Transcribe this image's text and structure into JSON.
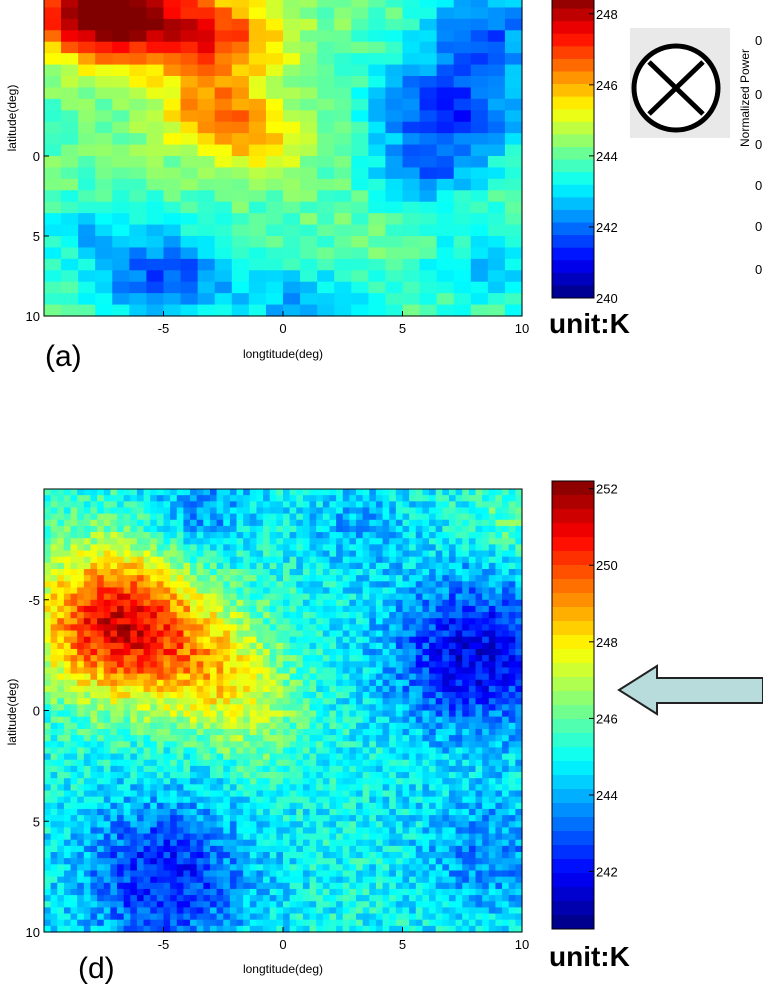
{
  "chart_data": [
    {
      "type": "heatmap",
      "panel_label": "(a)",
      "xlabel": "longtitude(deg)",
      "ylabel": "latitude(deg)",
      "x_ticks": [
        -5,
        0,
        5,
        10
      ],
      "y_ticks": [
        0,
        5,
        10
      ],
      "xlim": [
        -10,
        10
      ],
      "ylim": [
        -10,
        10
      ],
      "colorbar": {
        "ticks": [
          240,
          242,
          244,
          246,
          248
        ],
        "range": [
          240,
          248.5
        ],
        "unit_label": "unit:K"
      },
      "fields": {
        "base": 244.0,
        "blobs": [
          {
            "lon": -7.5,
            "lat": -9.0,
            "amp": 5.5,
            "sigma": 2.0
          },
          {
            "lon": -3.0,
            "lat": -7.5,
            "amp": 3.0,
            "sigma": 2.2
          },
          {
            "lon": -3.0,
            "lat": -2.5,
            "amp": 2.0,
            "sigma": 1.6
          },
          {
            "lon": -1.0,
            "lat": -1.0,
            "amp": 1.5,
            "sigma": 1.5
          },
          {
            "lon": 7.0,
            "lat": -3.0,
            "amp": -2.6,
            "sigma": 2.3
          },
          {
            "lon": 8.5,
            "lat": -8.0,
            "amp": -2.0,
            "sigma": 1.8
          },
          {
            "lon": 6.0,
            "lat": 1.0,
            "amp": -1.6,
            "sigma": 1.5
          },
          {
            "lon": -5.0,
            "lat": 7.5,
            "amp": -2.3,
            "sigma": 2.2
          },
          {
            "lon": 1.0,
            "lat": 9.5,
            "amp": -1.5,
            "sigma": 1.8
          },
          {
            "lon": 8.5,
            "lat": 7.0,
            "amp": -1.2,
            "sigma": 1.8
          },
          {
            "lon": -8.5,
            "lat": 4.5,
            "amp": -1.0,
            "sigma": 1.2
          }
        ]
      }
    },
    {
      "type": "heatmap",
      "panel_label": "(d)",
      "xlabel": "longtitude(deg)",
      "ylabel": "latitude(deg)",
      "x_ticks": [
        -5,
        0,
        5,
        10
      ],
      "y_ticks": [
        -5,
        0,
        5,
        10
      ],
      "xlim": [
        -10,
        10
      ],
      "ylim": [
        -10,
        10
      ],
      "colorbar": {
        "ticks": [
          242,
          244,
          246,
          248,
          250,
          252
        ],
        "range": [
          240.5,
          252.2
        ],
        "unit_label": "unit:K"
      },
      "fields": {
        "base": 245.0,
        "blobs": [
          {
            "lon": -7.0,
            "lat": -4.0,
            "amp": 6.0,
            "sigma": 2.4
          },
          {
            "lon": -3.0,
            "lat": -2.0,
            "amp": 2.5,
            "sigma": 2.0
          },
          {
            "lon": -1.0,
            "lat": 0.5,
            "amp": 1.2,
            "sigma": 1.6
          },
          {
            "lon": 8.0,
            "lat": -2.5,
            "amp": -3.3,
            "sigma": 2.5
          },
          {
            "lon": -5.0,
            "lat": 7.5,
            "amp": -2.8,
            "sigma": 2.5
          },
          {
            "lon": -3.5,
            "lat": -9.0,
            "amp": -1.6,
            "sigma": 1.5
          },
          {
            "lon": 3.0,
            "lat": -8.5,
            "amp": -1.0,
            "sigma": 1.5
          },
          {
            "lon": 8.5,
            "lat": 6.5,
            "amp": -1.5,
            "sigma": 2.0
          },
          {
            "lon": 9.5,
            "lat": -8.5,
            "amp": 1.0,
            "sigma": 1.2
          }
        ]
      }
    }
  ],
  "side": {
    "normalized_axis_label": "Normalized Power",
    "normalized_ticks": [
      "0",
      "0",
      "0",
      "0",
      "0",
      "0"
    ],
    "operator_icon": "circled-times-icon",
    "arrow_icon": "left-arrow-icon",
    "arrow_fill": "#b8dcdc",
    "arrow_stroke": "#222222"
  }
}
